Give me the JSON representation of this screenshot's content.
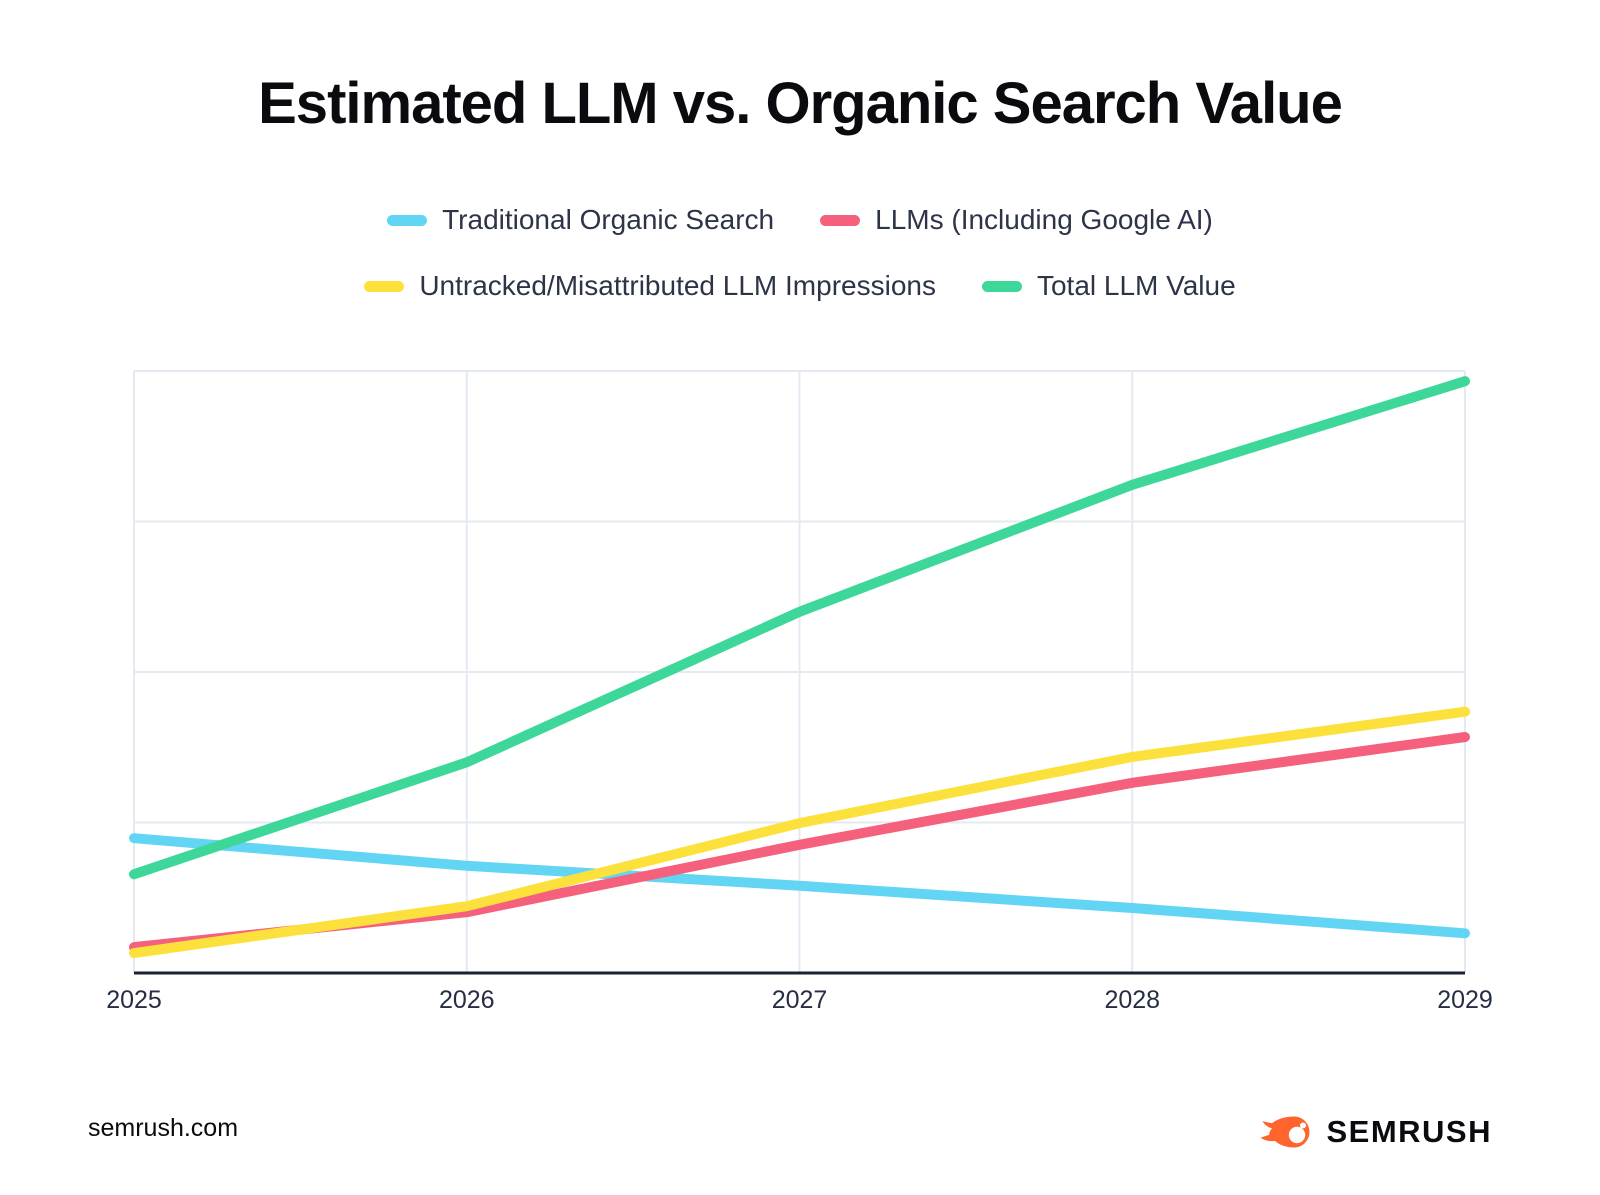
{
  "page": {
    "title": "Estimated LLM vs. Organic Search Value"
  },
  "footer": {
    "site": "semrush.com",
    "brand": "SEMRUSH"
  },
  "colors": {
    "background": "#ffffff",
    "title_text": "#0b0b0f",
    "legend_text": "#2d3448",
    "axis_label_text": "#262e44",
    "gridline": "#e4e9f2",
    "axis_line": "#1a2233",
    "brand_orange": "#ff642d",
    "series_cyan": "#62d5f4",
    "series_pink": "#f5607d",
    "series_yellow": "#fce13c",
    "series_green": "#3ed79a"
  },
  "chart_data": {
    "type": "line",
    "title": "Estimated LLM vs. Organic Search Value",
    "categories": [
      "2025",
      "2026",
      "2027",
      "2028",
      "2029"
    ],
    "series": [
      {
        "name": "Traditional Organic Search",
        "color": "#62d5f4",
        "values": [
          22.4,
          17.8,
          14.5,
          10.8,
          6.6
        ]
      },
      {
        "name": "LLMs (Including Google AI)",
        "color": "#f5607d",
        "values": [
          4.3,
          10.1,
          21.3,
          31.6,
          39.2
        ]
      },
      {
        "name": "Untracked/Misattributed LLM Impressions",
        "color": "#fce13c",
        "values": [
          3.3,
          11.1,
          24.9,
          35.9,
          43.4
        ]
      },
      {
        "name": "Total LLM Value",
        "color": "#3ed79a",
        "values": [
          16.4,
          35.0,
          60.0,
          81.1,
          98.3
        ]
      }
    ],
    "legend_rows": [
      [
        "Traditional Organic Search",
        "LLMs (Including Google AI)"
      ],
      [
        "Untracked/Misattributed LLM Impressions",
        "Total LLM Value"
      ]
    ],
    "xlabel": "",
    "ylabel": "",
    "ylim": [
      0,
      100
    ],
    "y_axis_labels_visible": false,
    "grid": true,
    "legend_position": "top"
  }
}
